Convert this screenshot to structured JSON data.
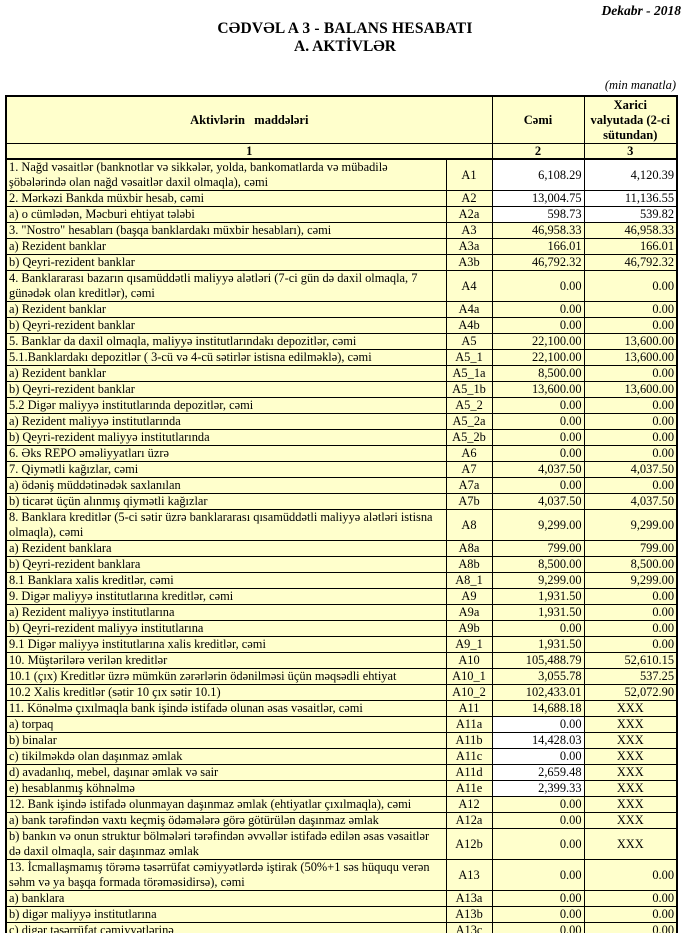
{
  "page": {
    "date": "Dekabr - 2018",
    "title": "CƏDVƏL A 3 - BALANS HESABATI",
    "subtitle": "A. AKTİVLƏR",
    "units_note": "(min manatla)"
  },
  "colors": {
    "cell_yellow": "#ffffcc",
    "cell_white": "#ffffff",
    "border": "#000000"
  },
  "table": {
    "header": {
      "items": "Aktivlərin   maddələri",
      "cemi": "Cəmi",
      "xarici": "Xarici valyutada (2-ci sütundan)"
    },
    "col_nums": [
      "1",
      "2",
      "3"
    ],
    "rows": [
      {
        "code": "A1",
        "label": "1. Nağd vəsaitlər (banknotlar və sikkələr, yolda, bankomatlarda və mübadilə şöbələrində olan nağd vəsaitlər daxil olmaqla), cəmi",
        "cemi": "6,108.29",
        "xarici": "4,120.39",
        "c_w": true,
        "x_w": true,
        "vtop": true
      },
      {
        "code": "A2",
        "label": "2. Mərkəzi Bankda müxbir hesab, cəmi",
        "cemi": "13,004.75",
        "xarici": "11,136.55",
        "c_w": true,
        "x_w": true
      },
      {
        "code": "A2a",
        "label": "a) o cümlədən, Məcburi ehtiyat tələbi",
        "cemi": "598.73",
        "xarici": "539.82",
        "ind": 2,
        "c_w": true,
        "x_w": true
      },
      {
        "code": "A3",
        "label": "3. \"Nostro\" hesabları (başqa banklardakı müxbir hesabları), cəmi",
        "cemi": "46,958.33",
        "xarici": "46,958.33"
      },
      {
        "code": "A3a",
        "label": "a) Rezident banklar",
        "cemi": "166.01",
        "xarici": "166.01",
        "ind": 2
      },
      {
        "code": "A3b",
        "label": "b) Qeyri-rezident banklar",
        "cemi": "46,792.32",
        "xarici": "46,792.32",
        "ind": 2
      },
      {
        "code": "A4",
        "label": "4. Banklararası bazarın qısamüddətli maliyyə alətləri (7-ci gün də daxil olmaqla, 7 günədək olan kreditlər), cəmi",
        "cemi": "0.00",
        "xarici": "0.00",
        "vtop": true
      },
      {
        "code": "A4a",
        "label": "a) Rezident banklar",
        "cemi": "0.00",
        "xarici": "0.00",
        "ind": 2
      },
      {
        "code": "A4b",
        "label": "b) Qeyri-rezident banklar",
        "cemi": "0.00",
        "xarici": "0.00",
        "ind": 2
      },
      {
        "code": "A5",
        "label": "5. Banklar da daxil olmaqla, maliyyə institutlarındakı depozitlər, cəmi",
        "cemi": "22,100.00",
        "xarici": "13,600.00"
      },
      {
        "code": "A5_1",
        "label": "5.1.Banklardakı depozitlər ( 3-cü və 4-cü sətirlər istisna edilməklə), cəmi",
        "cemi": "22,100.00",
        "xarici": "13,600.00"
      },
      {
        "code": "A5_1a",
        "label": "a) Rezident banklar",
        "cemi": "8,500.00",
        "xarici": "0.00",
        "ind": 2
      },
      {
        "code": "A5_1b",
        "label": "b) Qeyri-rezident banklar",
        "cemi": "13,600.00",
        "xarici": "13,600.00",
        "ind": 2
      },
      {
        "code": "A5_2",
        "label": "5.2 Digər maliyyə institutlarında depozitlər, cəmi",
        "cemi": "0.00",
        "xarici": "0.00"
      },
      {
        "code": "A5_2a",
        "label": "a) Rezident maliyyə institutlarında",
        "cemi": "0.00",
        "xarici": "0.00",
        "ind": 2
      },
      {
        "code": "A5_2b",
        "label": "b) Qeyri-rezident maliyyə institutlarında",
        "cemi": "0.00",
        "xarici": "0.00",
        "ind": 2
      },
      {
        "code": "A6",
        "label": "6. Əks REPO əməliyyatları üzrə",
        "cemi": "0.00",
        "xarici": "0.00"
      },
      {
        "code": "A7",
        "label": "7. Qiymətli kağızlar, cəmi",
        "cemi": "4,037.50",
        "xarici": "4,037.50"
      },
      {
        "code": "A7a",
        "label": "a) ödəniş müddətinədək saxlanılan",
        "cemi": "0.00",
        "xarici": "0.00",
        "ind": 2
      },
      {
        "code": "A7b",
        "label": "b) ticarət üçün alınmış qiymətli kağızlar",
        "cemi": "4,037.50",
        "xarici": "4,037.50",
        "ind": 2
      },
      {
        "code": "A8",
        "label": "8. Banklara kreditlər (5-ci sətir üzrə banklararası qısamüddətli maliyyə alətləri istisna olmaqla), cəmi",
        "cemi": "9,299.00",
        "xarici": "9,299.00"
      },
      {
        "code": "A8a",
        "label": "a) Rezident banklara",
        "cemi": "799.00",
        "xarici": "799.00",
        "ind": 2
      },
      {
        "code": "A8b",
        "label": "b) Qeyri-rezident banklara",
        "cemi": "8,500.00",
        "xarici": "8,500.00",
        "ind": 2
      },
      {
        "code": "A8_1",
        "label": "8.1 Banklara xalis kreditlər, cəmi",
        "cemi": "9,299.00",
        "xarici": "9,299.00"
      },
      {
        "code": "A9",
        "label": "9. Digər maliyyə institutlarına kreditlər, cəmi",
        "cemi": "1,931.50",
        "xarici": "0.00"
      },
      {
        "code": "A9a",
        "label": "a) Rezident maliyyə institutlarına",
        "cemi": "1,931.50",
        "xarici": "0.00",
        "ind": 2
      },
      {
        "code": "A9b",
        "label": "b) Qeyri-rezident maliyyə institutlarına",
        "cemi": "0.00",
        "xarici": "0.00",
        "ind": 2
      },
      {
        "code": "A9_1",
        "label": "9.1 Digər maliyyə institutlarına xalis kreditlər, cəmi",
        "cemi": "1,931.50",
        "xarici": "0.00"
      },
      {
        "code": "A10",
        "label": "10. Müştərilərə verilən kreditlər",
        "cemi": "105,488.79",
        "xarici": "52,610.15"
      },
      {
        "code": "A10_1",
        "label": "10.1 (çıx) Kreditlər üzrə mümkün zərərlərin ödənilməsi üçün məqsədli ehtiyat",
        "cemi": "3,055.78",
        "xarici": "537.25"
      },
      {
        "code": "A10_2",
        "label": "10.2 Xalis kreditlər (sətir 10 çıx sətir 10.1)",
        "cemi": "102,433.01",
        "xarici": "52,072.90"
      },
      {
        "code": "A11",
        "label": "11. Könəlmə çıxılmaqla bank işində istifadə olunan əsas vəsaitlər, cəmi",
        "cemi": "14,688.18",
        "xarici": "XXX"
      },
      {
        "code": "A11a",
        "label": "a) torpaq",
        "cemi": "0.00",
        "xarici": "XXX",
        "ind": 2,
        "c_w": true
      },
      {
        "code": "A11b",
        "label": "b) binalar",
        "cemi": "14,428.03",
        "xarici": "XXX",
        "ind": 2,
        "c_w": true
      },
      {
        "code": "A11c",
        "label": "c) tikilməkdə olan daşınmaz əmlak",
        "cemi": "0.00",
        "xarici": "XXX",
        "ind": 2,
        "c_w": true
      },
      {
        "code": "A11d",
        "label": "d) avadanlıq, mebel, daşınar əmlak və sair",
        "cemi": "2,659.48",
        "xarici": "XXX",
        "ind": 2,
        "c_w": true
      },
      {
        "code": "A11e",
        "label": "e) hesablanmış köhnəlmə",
        "cemi": "2,399.33",
        "xarici": "XXX",
        "ind": 2,
        "c_w": true
      },
      {
        "code": "A12",
        "label": "12. Bank işində istifadə olunmayan daşınmaz əmlak (ehtiyatlar çıxılmaqla), cəmi",
        "cemi": "0.00",
        "xarici": "XXX"
      },
      {
        "code": "A12a",
        "label": "a) bank tərəfindən vaxtı keçmiş ödəmələrə görə götürülən daşınmaz əmlak",
        "cemi": "0.00",
        "xarici": "XXX",
        "ind": 2
      },
      {
        "code": "A12b",
        "label": "b) bankın və onun struktur bölmələri tərəfindən əvvəllər istifadə edilən əsas vəsaitlər də daxil olmaqla, sair daşınmaz əmlak",
        "cemi": "0.00",
        "xarici": "XXX",
        "ind": 1
      },
      {
        "code": "A13",
        "label": "13. İcmallaşmamış törəmə təsərrüfat cəmiyyətlərdə iştirak (50%+1 səs hüququ verən səhm və ya başqa formada törəməsidirsə), cəmi",
        "cemi": "0.00",
        "xarici": "0.00"
      },
      {
        "code": "A13a",
        "label": "a) banklara",
        "cemi": "0.00",
        "xarici": "0.00",
        "ind": 2
      },
      {
        "code": "A13b",
        "label": "b) digər maliyyə institutlarına",
        "cemi": "0.00",
        "xarici": "0.00",
        "ind": 2
      },
      {
        "code": "A13c",
        "label": "c) digər təsərrüfat cəmiyyətlərinə",
        "cemi": "0.00",
        "xarici": "0.00",
        "ind": 2
      }
    ]
  }
}
